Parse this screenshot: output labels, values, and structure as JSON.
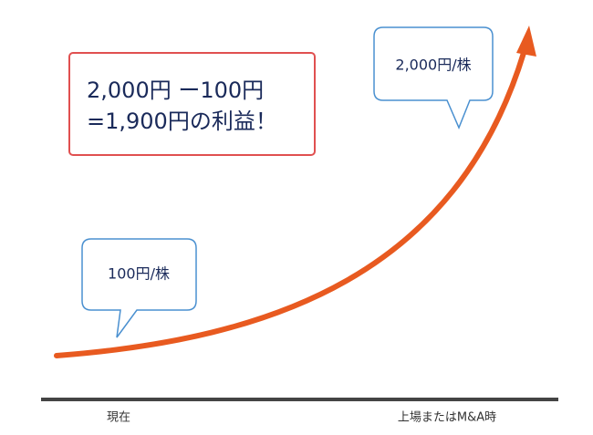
{
  "profit_box": {
    "lines": [
      "2,000円 ー100円",
      "=1,900円の利益！"
    ]
  },
  "callouts": [
    {
      "label": "100円/株"
    },
    {
      "label": "2,000円/株"
    }
  ],
  "axis_labels": [
    "現在",
    "上場またはM&A時"
  ]
}
